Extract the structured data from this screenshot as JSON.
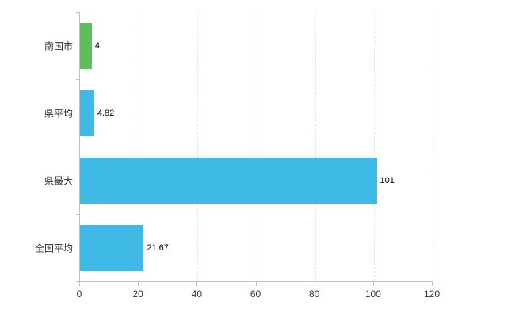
{
  "chart_data": {
    "type": "bar",
    "orientation": "horizontal",
    "title": "",
    "xlabel": "",
    "ylabel": "",
    "categories": [
      "南国市",
      "県平均",
      "県最大",
      "全国平均"
    ],
    "values": [
      4,
      4.82,
      101,
      21.67
    ],
    "value_labels": [
      "4",
      "4.82",
      "101",
      "21.67"
    ],
    "bar_colors": [
      "#5cbe5c",
      "#3fb9e5",
      "#3fb9e5",
      "#3fb9e5"
    ],
    "xlim": [
      0,
      120
    ],
    "x_ticks": [
      0,
      20,
      40,
      60,
      80,
      100,
      120
    ],
    "grid": "vertical-dashed",
    "legend": "none"
  },
  "colors": {
    "axis": "#c0c0c0",
    "grid": "#e4e4e4",
    "category_label": "#333333",
    "tick_label": "#333333",
    "value_label": "#000000",
    "background": "#ffffff"
  }
}
